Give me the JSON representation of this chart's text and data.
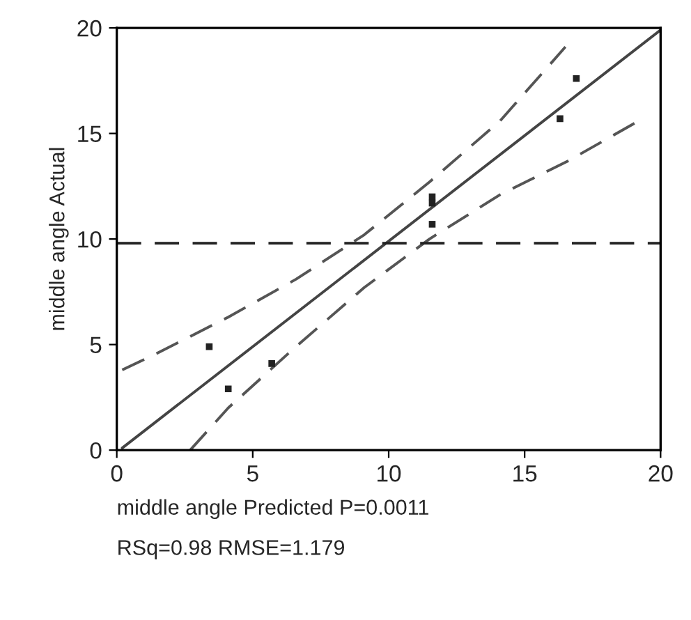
{
  "chart_data": {
    "type": "scatter",
    "xlabel": "middle angle Predicted P=0.0011",
    "ylabel": "middle angle Actual",
    "annotations": [
      "RSq=0.98 RMSE=1.179"
    ],
    "xlim": [
      0,
      20
    ],
    "ylim": [
      0,
      20
    ],
    "xticks": [
      0,
      5,
      10,
      15,
      20
    ],
    "yticks": [
      0,
      5,
      10,
      15,
      20
    ],
    "grid": false,
    "legend": false,
    "series": [
      {
        "color": "#222222",
        "marker": "square",
        "x": [
          3.4,
          4.1,
          5.7,
          11.6,
          11.6,
          11.6,
          16.3,
          16.9
        ],
        "values": [
          4.9,
          2.9,
          4.1,
          12.0,
          11.7,
          10.7,
          15.7,
          17.6
        ]
      },
      {
        "type": "line",
        "color": "#444444",
        "line_style": "solid",
        "x": [
          0.2,
          20
        ],
        "values": [
          0.1,
          19.9
        ]
      },
      {
        "type": "line",
        "color": "#555555",
        "line_style": "dashed",
        "x": [
          0.2,
          1.5,
          4.1,
          6.6,
          9.1,
          11.5,
          14.1,
          16.5
        ],
        "values": [
          3.8,
          4.6,
          6.3,
          8.1,
          10.2,
          12.7,
          15.6,
          19.1
        ]
      },
      {
        "type": "line",
        "color": "#555555",
        "line_style": "dashed",
        "x": [
          2.7,
          4.1,
          6.5,
          9.1,
          11.5,
          14.1,
          16.6,
          19.2
        ],
        "values": [
          0,
          2.0,
          4.8,
          7.7,
          10.0,
          12.1,
          13.7,
          15.6
        ]
      }
    ],
    "ref_lines": [
      {
        "axis": "y",
        "value": 9.8,
        "color": "#222222",
        "line_style": "dashed"
      }
    ]
  }
}
